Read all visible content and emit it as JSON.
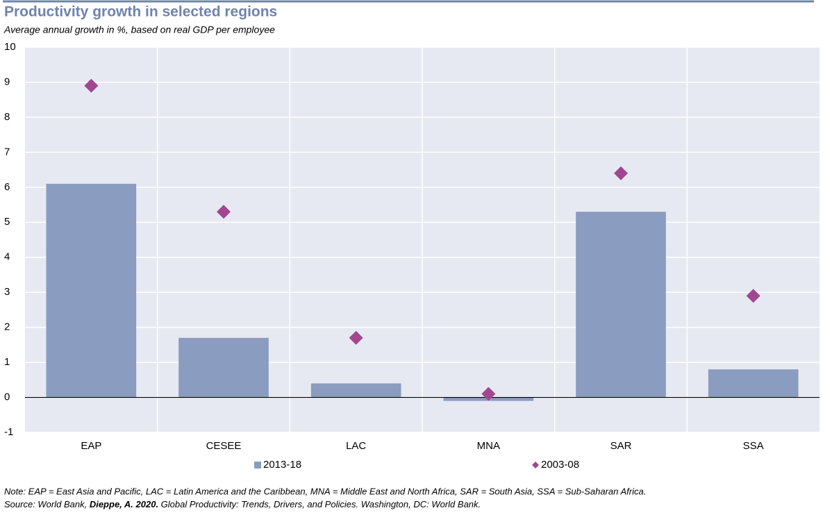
{
  "chart_data": {
    "type": "bar",
    "title": "Productivity growth in selected regions",
    "subtitle": "Average annual growth in %, based on real GDP per employee",
    "categories": [
      "EAP",
      "CESEE",
      "LAC",
      "MNA",
      "SAR",
      "SSA"
    ],
    "series": [
      {
        "name": "2013-18",
        "color": "#8a9cc0",
        "values": [
          6.1,
          1.7,
          0.4,
          -0.1,
          5.3,
          0.8
        ]
      },
      {
        "name": "2003-08",
        "color": "#a1468f",
        "marker": "diamond",
        "values": [
          8.9,
          5.3,
          1.7,
          0.1,
          6.4,
          2.9
        ]
      }
    ],
    "ylim": [
      -1,
      10
    ],
    "yticks": [
      -1,
      0,
      1,
      2,
      3,
      4,
      5,
      6,
      7,
      8,
      9,
      10
    ],
    "grid": true,
    "note": "Note: EAP = East Asia and Pacific, LAC = Latin America and the Caribbean, MNA = Middle East and North Africa, SAR = South Asia, SSA = Sub-Saharan Africa.",
    "source": [
      "Source: World Bank, ",
      "Dieppe, A. 2020.",
      " Global Productivity: Trends, Drivers, and Policies. Washington, DC: World Bank."
    ]
  }
}
